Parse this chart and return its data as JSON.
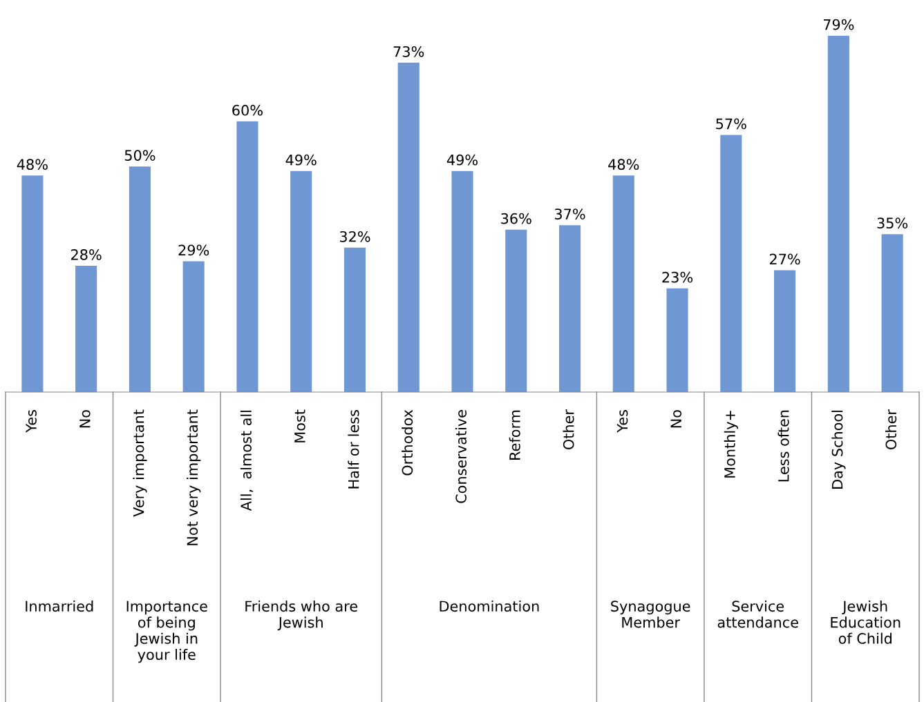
{
  "chart_data": {
    "type": "bar",
    "categories": [
      "Yes",
      "No",
      "Very important",
      "Not very important",
      "All,  almost all",
      "Most",
      "Half or less",
      "Orthodox",
      "Conservative",
      "Reform",
      "Other",
      "Yes",
      "No",
      "Monthly+",
      "Less often",
      "Day School",
      "Other"
    ],
    "values": [
      48,
      28,
      50,
      29,
      60,
      49,
      32,
      73,
      49,
      36,
      37,
      48,
      23,
      57,
      27,
      79,
      35
    ],
    "value_labels": [
      "48%",
      "28%",
      "50%",
      "29%",
      "60%",
      "49%",
      "32%",
      "73%",
      "49%",
      "36%",
      "37%",
      "48%",
      "23%",
      "57%",
      "27%",
      "79%",
      "35%"
    ],
    "color": "#6f97d3",
    "tick_labels": "x",
    "grid": false,
    "legend": false,
    "annotations": [
      "Inmarried",
      "Importance\nof being\nJewish in\nyour life",
      "Friends who are\nJewish",
      "Denomination",
      "Synagogue\nMember",
      "Service\nattendance",
      "Jewish\nEducation\nof Child"
    ]
  }
}
